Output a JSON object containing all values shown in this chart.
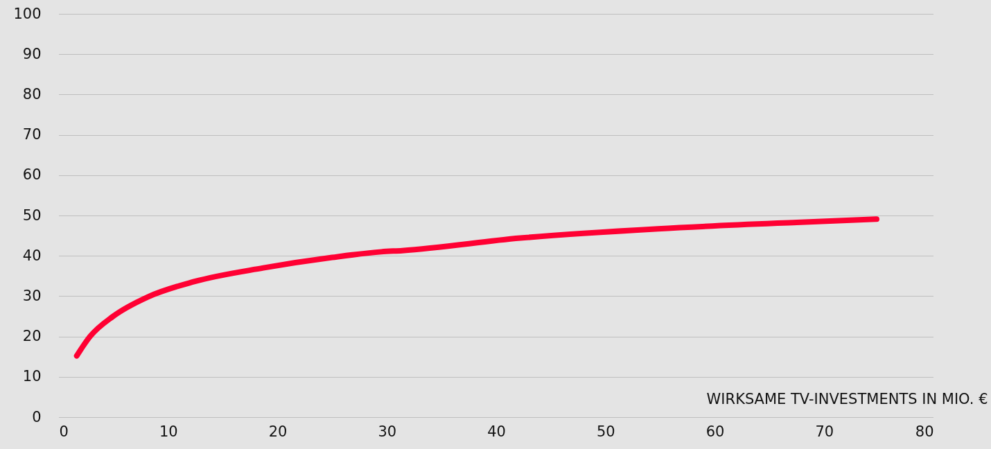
{
  "chart_data": {
    "type": "line",
    "xlabel": "WIRKSAME TV-INVESTMENTS IN MIO. €",
    "x": [
      1.63,
      2.85,
      4.96,
      8.13,
      12.36,
      18.7,
      25.0,
      29.5,
      31.4,
      42.2,
      54.8,
      67.5,
      74.8
    ],
    "series": [
      {
        "color": "#ff0033",
        "values": [
          15.2,
          20,
          25,
          29.8,
          33.6,
          37,
          39.6,
          41.0,
          41.3,
          44.4,
          46.7,
          48.3,
          49.1
        ]
      }
    ],
    "xlim": [
      0,
      80
    ],
    "xticks": [
      0,
      10,
      20,
      30,
      40,
      50,
      60,
      70,
      80
    ],
    "ylim": [
      0,
      100
    ],
    "yticks": [
      0,
      10,
      20,
      30,
      40,
      50,
      60,
      70,
      80,
      90,
      100
    ],
    "grid": "y",
    "marker": "none",
    "line_style": "solid"
  }
}
